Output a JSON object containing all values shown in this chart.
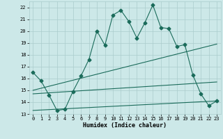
{
  "xlabel": "Humidex (Indice chaleur)",
  "bg_color": "#cce8e8",
  "grid_color": "#aacccc",
  "line_color": "#1a6b5a",
  "xlim": [
    -0.5,
    23.5
  ],
  "ylim": [
    13,
    22.5
  ],
  "yticks": [
    13,
    14,
    15,
    16,
    17,
    18,
    19,
    20,
    21,
    22
  ],
  "xticks": [
    0,
    1,
    2,
    3,
    4,
    5,
    6,
    7,
    8,
    9,
    10,
    11,
    12,
    13,
    14,
    15,
    16,
    17,
    18,
    19,
    20,
    21,
    22,
    23
  ],
  "line1_x": [
    0,
    1,
    2,
    3,
    4,
    5,
    6,
    7,
    8,
    9,
    10,
    11,
    12,
    13,
    14,
    15,
    16,
    17,
    18,
    19,
    20,
    21,
    22,
    23
  ],
  "line1_y": [
    16.5,
    15.8,
    14.6,
    13.3,
    13.4,
    14.9,
    16.2,
    17.6,
    20.0,
    18.8,
    21.35,
    21.75,
    20.8,
    19.4,
    20.7,
    22.2,
    20.3,
    20.2,
    18.7,
    18.85,
    16.3,
    14.7,
    13.7,
    14.1
  ],
  "line2_x": [
    0,
    23
  ],
  "line2_y": [
    15.0,
    18.9
  ],
  "line3_x": [
    0,
    23
  ],
  "line3_y": [
    14.7,
    15.7
  ],
  "line4_x": [
    0,
    23
  ],
  "line4_y": [
    13.3,
    14.1
  ],
  "marker_size": 2.5,
  "line_width": 0.8,
  "xlabel_fontsize": 6,
  "tick_fontsize": 5
}
